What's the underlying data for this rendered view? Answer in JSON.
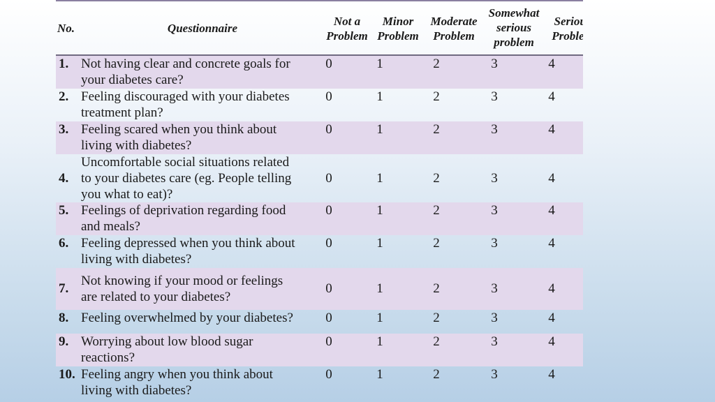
{
  "headers": {
    "no": "No.",
    "questionnaire": "Questionnaire",
    "scale": [
      {
        "line1": "Not a",
        "line2": "Problem",
        "line3": ""
      },
      {
        "line1": "Minor",
        "line2": "Problem",
        "line3": ""
      },
      {
        "line1": "Moderate",
        "line2": "Problem",
        "line3": ""
      },
      {
        "line1": "Somewhat",
        "line2": "serious",
        "line3": "problem"
      },
      {
        "line1": "Serious",
        "line2": "Problem",
        "line3": ""
      }
    ]
  },
  "rows": [
    {
      "no": "1.",
      "lines": [
        "Not having clear and concrete goals for",
        "your diabetes care?",
        ""
      ],
      "values": [
        "0",
        "1",
        "2",
        "3",
        "4"
      ]
    },
    {
      "no": "2.",
      "lines": [
        "Feeling discouraged with your diabetes",
        "treatment plan?",
        ""
      ],
      "values": [
        "0",
        "1",
        "2",
        "3",
        "4"
      ]
    },
    {
      "no": "3.",
      "lines": [
        "Feeling scared when you think about",
        "living with diabetes?",
        ""
      ],
      "values": [
        "0",
        "1",
        "2",
        "3",
        "4"
      ]
    },
    {
      "no": "4.",
      "lines": [
        "Uncomfortable social situations related",
        "to your diabetes care (eg. People telling",
        "you what to eat)?"
      ],
      "values": [
        "0",
        "1",
        "2",
        "3",
        "4"
      ]
    },
    {
      "no": "5.",
      "lines": [
        "Feelings of deprivation regarding food",
        "and meals?",
        ""
      ],
      "values": [
        "0",
        "1",
        "2",
        "3",
        "4"
      ]
    },
    {
      "no": "6.",
      "lines": [
        "Feeling depressed when you think about",
        "living with diabetes?",
        ""
      ],
      "values": [
        "0",
        "1",
        "2",
        "3",
        "4"
      ]
    },
    {
      "no": "7.",
      "lines": [
        "Not knowing if your mood or feelings",
        "are related to your diabetes?",
        ""
      ],
      "values": [
        "0",
        "1",
        "2",
        "3",
        "4"
      ]
    },
    {
      "no": "8.",
      "lines": [
        "Feeling overwhelmed by your diabetes?",
        "",
        ""
      ],
      "values": [
        "0",
        "1",
        "2",
        "3",
        "4"
      ]
    },
    {
      "no": "9.",
      "lines": [
        "Worrying about low blood sugar",
        "reactions?",
        ""
      ],
      "values": [
        "0",
        "1",
        "2",
        "3",
        "4"
      ]
    },
    {
      "no": "10.",
      "lines": [
        "Feeling angry when you think about",
        "living with diabetes?",
        ""
      ],
      "values": [
        "0",
        "1",
        "2",
        "3",
        "4"
      ]
    }
  ]
}
